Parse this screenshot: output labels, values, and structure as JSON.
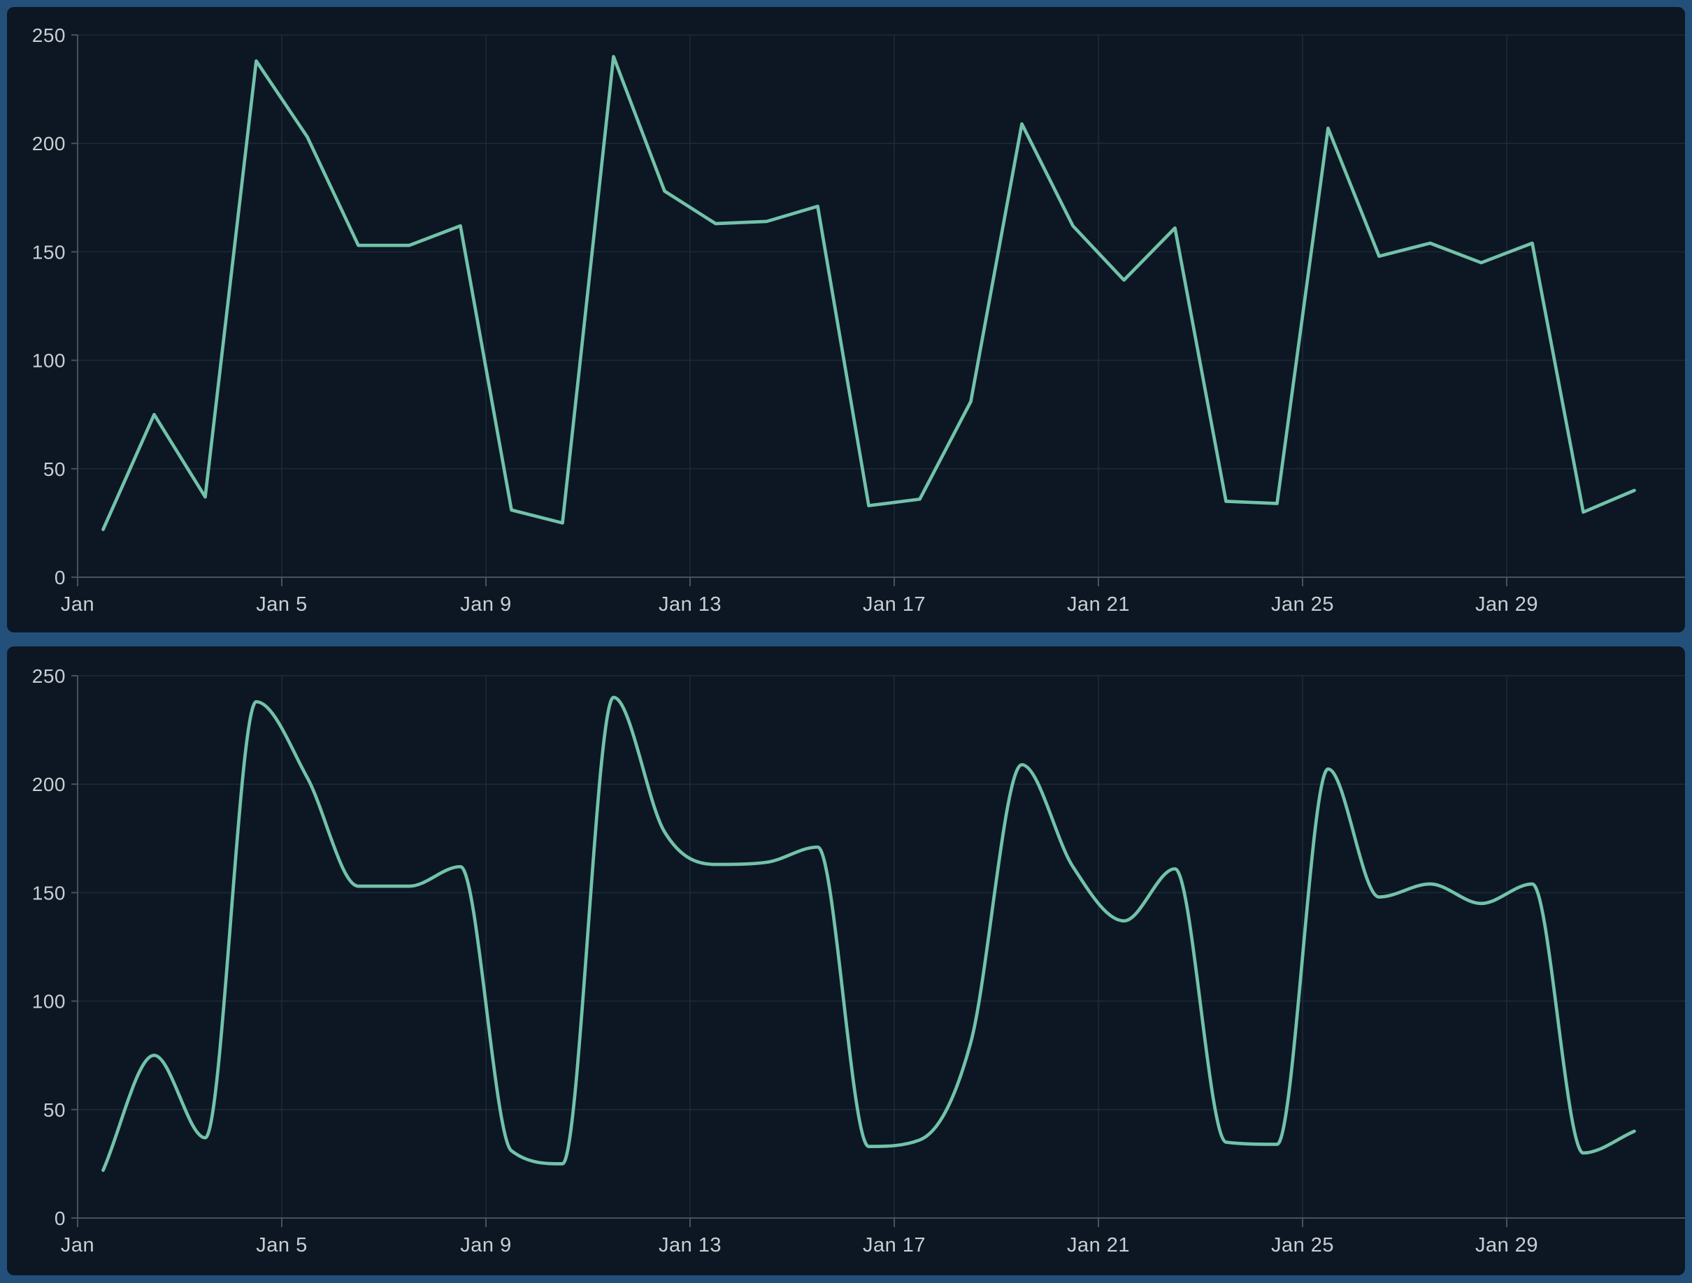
{
  "theme": {
    "page_background": "#234f7b",
    "panel_background": "#0c1723",
    "grid_color": "#1d2b37",
    "axis_color": "#46525c",
    "label_color": "#c9ced4",
    "line_color": "#72c2aa"
  },
  "panels": [
    {
      "name": "daily-series-linear-chart"
    },
    {
      "name": "daily-series-smoothed-chart"
    }
  ],
  "chart_data": [
    {
      "type": "line",
      "smooth": false,
      "title": "",
      "x": [
        "Jan 1",
        "Jan 2",
        "Jan 3",
        "Jan 4",
        "Jan 5",
        "Jan 6",
        "Jan 7",
        "Jan 8",
        "Jan 9",
        "Jan 10",
        "Jan 11",
        "Jan 12",
        "Jan 13",
        "Jan 14",
        "Jan 15",
        "Jan 16",
        "Jan 17",
        "Jan 18",
        "Jan 19",
        "Jan 20",
        "Jan 21",
        "Jan 22",
        "Jan 23",
        "Jan 24",
        "Jan 25",
        "Jan 26",
        "Jan 27",
        "Jan 28",
        "Jan 29",
        "Jan 30",
        "Jan 31"
      ],
      "values": [
        22,
        75,
        37,
        238,
        203,
        153,
        153,
        162,
        31,
        25,
        240,
        178,
        163,
        164,
        171,
        33,
        36,
        81,
        209,
        162,
        137,
        161,
        35,
        34,
        207,
        148,
        154,
        145,
        154,
        30,
        40
      ],
      "x_tick_labels": [
        "Jan",
        "Jan 5",
        "Jan 9",
        "Jan 13",
        "Jan 17",
        "Jan 21",
        "Jan 25",
        "Jan 29"
      ],
      "y_ticks": [
        0,
        50,
        100,
        150,
        200,
        250
      ],
      "ylim": [
        0,
        250
      ],
      "grid": true,
      "legend_position": "none",
      "line_color": "#72c2aa"
    },
    {
      "type": "line",
      "smooth": true,
      "title": "",
      "x": [
        "Jan 1",
        "Jan 2",
        "Jan 3",
        "Jan 4",
        "Jan 5",
        "Jan 6",
        "Jan 7",
        "Jan 8",
        "Jan 9",
        "Jan 10",
        "Jan 11",
        "Jan 12",
        "Jan 13",
        "Jan 14",
        "Jan 15",
        "Jan 16",
        "Jan 17",
        "Jan 18",
        "Jan 19",
        "Jan 20",
        "Jan 21",
        "Jan 22",
        "Jan 23",
        "Jan 24",
        "Jan 25",
        "Jan 26",
        "Jan 27",
        "Jan 28",
        "Jan 29",
        "Jan 30",
        "Jan 31"
      ],
      "values": [
        22,
        75,
        37,
        238,
        203,
        153,
        153,
        162,
        31,
        25,
        240,
        178,
        163,
        164,
        171,
        33,
        36,
        81,
        209,
        162,
        137,
        161,
        35,
        34,
        207,
        148,
        154,
        145,
        154,
        30,
        40
      ],
      "x_tick_labels": [
        "Jan",
        "Jan 5",
        "Jan 9",
        "Jan 13",
        "Jan 17",
        "Jan 21",
        "Jan 25",
        "Jan 29"
      ],
      "y_ticks": [
        0,
        50,
        100,
        150,
        200,
        250
      ],
      "ylim": [
        0,
        250
      ],
      "grid": true,
      "legend_position": "none",
      "line_color": "#72c2aa"
    }
  ]
}
